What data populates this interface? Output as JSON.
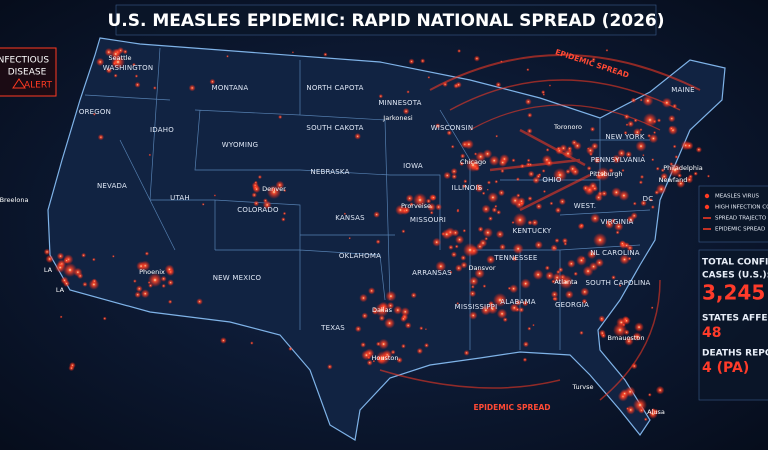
{
  "title": "U.S. MEASLES EPIDEMIC: RAPID NATIONAL SPREAD (2026)",
  "alert": [
    "INFECTIOUS",
    "DISEASE",
    "ALERT"
  ],
  "legend": [
    "MEASLES VIRUS",
    "HIGH INFECTION CO",
    "SPREAD TRAJECTO",
    "EPIDEMIC SPREAD"
  ],
  "stats": [
    {
      "label": [
        "TOTAL CONFIRM",
        "CASES (U.S.):"
      ],
      "value": "3,245"
    },
    {
      "label": [
        "STATES AFFECTEI"
      ],
      "value": "48"
    },
    {
      "label": [
        "DEATHS REPORTE"
      ],
      "value": "4 (PA)"
    }
  ],
  "annotations": [
    "EPIDEMIC SPREAD",
    "EPIDEMIC SPREAD"
  ],
  "states": [
    "WASHINGTON",
    "OREGON",
    "IDAHO",
    "MONTANA",
    "WYOMING",
    "NORTH CAPOTA",
    "SOUTH CAKOTA",
    "NEBRASKA",
    "NEVADA",
    "UTAH",
    "COLORADO",
    "KANSAS",
    "OKLAHOMA",
    "NEW MEXICO",
    "TEXAS",
    "MINNESOTA",
    "WISCONSIN",
    "IOWA",
    "ILLINOIS",
    "MISSOURI",
    "ARRANSAS",
    "MISSISSIPPI",
    "ALABAMA",
    "GEORGIA",
    "TENNESSEE",
    "KENTUCKY",
    "OHIO",
    "WEST.",
    "VIRGINIA",
    "NL CAROLINA",
    "SOUTH CAPOLINA",
    "PENNSYLVANIA",
    "NEW YORK",
    "MAINE",
    "DC"
  ],
  "cities": [
    "Seattle",
    "Jarkonesi",
    "Chicago",
    "Toronoro",
    "Pittsburgh",
    "Philadelphia",
    "Newfand",
    "Denver",
    "Phoenix",
    "LA",
    "LA",
    "Dallas",
    "Houston",
    "Atlanta",
    "Bmauoston",
    "Turvse",
    "Alusa",
    "Prorveise",
    "Dansvor",
    "Breelona"
  ]
}
